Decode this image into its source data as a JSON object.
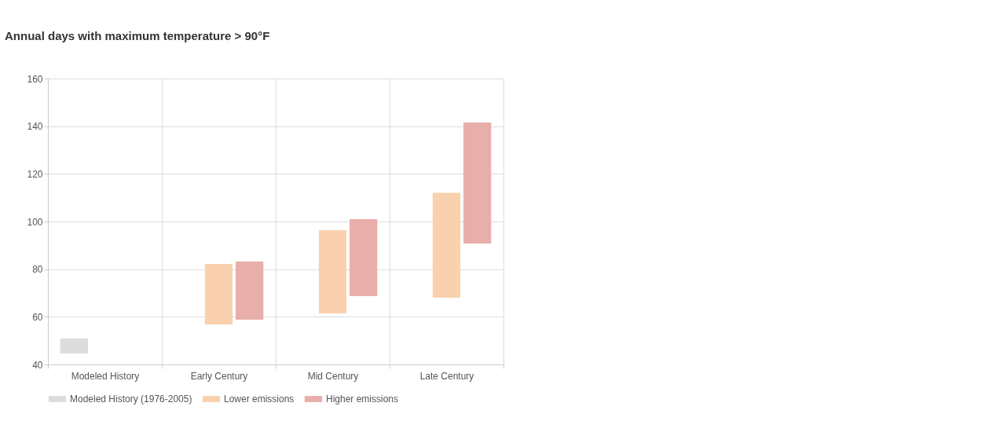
{
  "chart_data": {
    "type": "bar",
    "title": "Annual days with maximum temperature > 90°F",
    "categories": [
      "Modeled History",
      "Early Century",
      "Mid Century",
      "Late Century"
    ],
    "series": [
      {
        "name": "Modeled History (1976-2005)",
        "color": "#dcdcdc",
        "base": [
          44.6,
          null,
          null,
          null
        ],
        "values": [
          6.3,
          null,
          null,
          null
        ]
      },
      {
        "name": "Lower emissions",
        "color": "#f9d1ae",
        "base": [
          null,
          56.8,
          61.4,
          68
        ],
        "values": [
          null,
          25.4,
          35,
          44
        ]
      },
      {
        "name": "Higher emissions",
        "color": "#e8aeaa",
        "base": [
          null,
          58.8,
          68.7,
          90.8
        ],
        "values": [
          null,
          24.4,
          32.3,
          50.7
        ]
      }
    ],
    "ylim": [
      40,
      160
    ],
    "yticks": [
      40,
      60,
      80,
      100,
      120,
      140,
      160
    ],
    "grid": true,
    "legend": "bottom"
  }
}
